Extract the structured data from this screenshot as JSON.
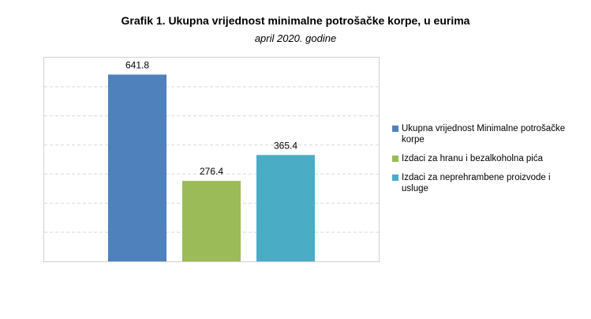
{
  "chart_data": {
    "type": "bar",
    "title": "Grafik 1. Ukupna vrijednost minimalne potrošačke korpe, u eurima",
    "subtitle": "april 2020. godine",
    "xlabel": "",
    "ylabel": "",
    "ylim": [
      0,
      700
    ],
    "grid": true,
    "legend_position": "right",
    "series": [
      {
        "name": "Ukupna vrijednost Minimalne potrošačke korpe",
        "value": 641.8,
        "label": "641.8",
        "color": "#4F81BD"
      },
      {
        "name": "Izdaci za hranu i bezalkoholna pića",
        "value": 276.4,
        "label": "276.4",
        "color": "#9BBB59"
      },
      {
        "name": "Izdaci za neprehrambene proizvode i usluge",
        "value": 365.4,
        "label": "365.4",
        "color": "#4BACC6"
      }
    ]
  }
}
